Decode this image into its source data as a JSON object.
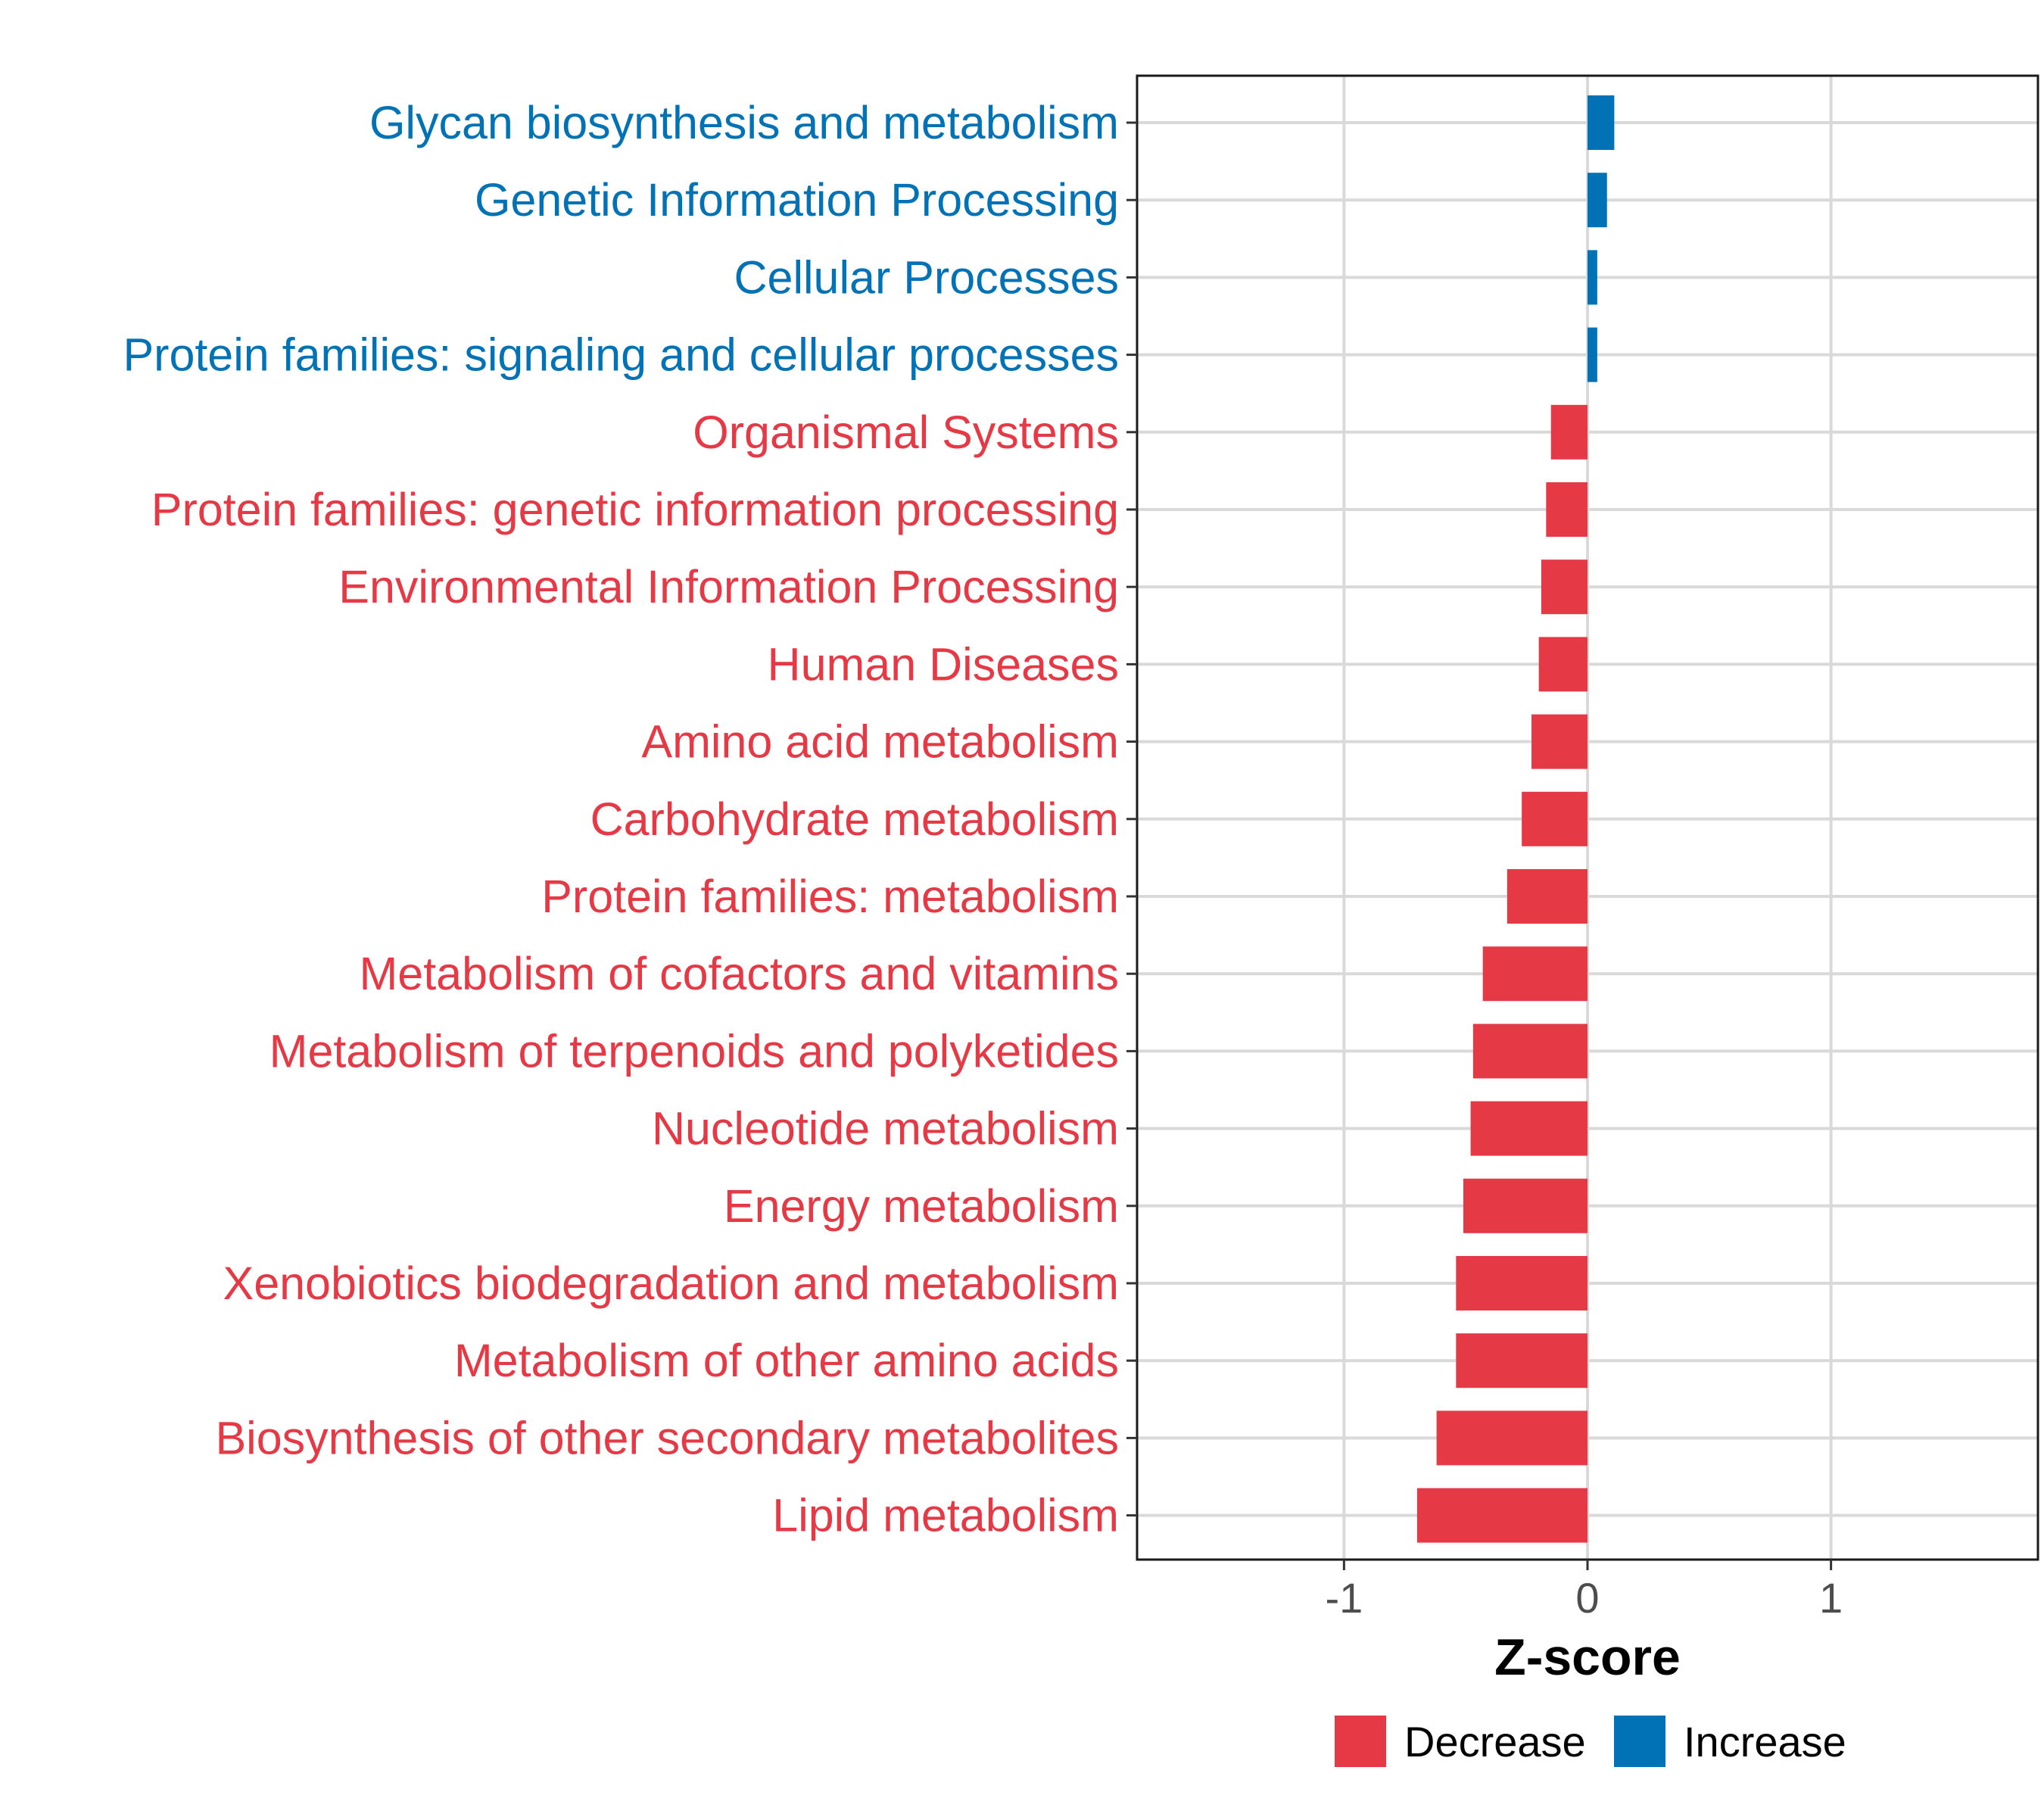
{
  "chart_data": {
    "type": "bar",
    "orientation": "horizontal",
    "xlabel": "Z-score",
    "ylabel": "",
    "xlim": [
      -1.85,
      1.85
    ],
    "xticks": [
      -1,
      0,
      1
    ],
    "grid": true,
    "legend_position": "bottom",
    "categories": [
      "Glycan biosynthesis and metabolism",
      "Genetic Information Processing",
      "Cellular Processes",
      "Protein families: signaling and cellular processes",
      "Organismal Systems",
      "Protein families: genetic information processing",
      "Environmental Information Processing",
      "Human Diseases",
      "Amino acid metabolism",
      "Carbohydrate metabolism",
      "Protein families: metabolism",
      "Metabolism of cofactors and vitamins",
      "Metabolism of terpenoids and polyketides",
      "Nucleotide metabolism",
      "Energy metabolism",
      "Xenobiotics biodegradation and metabolism",
      "Metabolism of other amino acids",
      "Biosynthesis of other secondary metabolites",
      "Lipid metabolism"
    ],
    "values": [
      0.11,
      0.08,
      0.04,
      0.04,
      -0.15,
      -0.17,
      -0.19,
      -0.2,
      -0.23,
      -0.27,
      -0.33,
      -0.43,
      -0.47,
      -0.48,
      -0.51,
      -0.54,
      -0.54,
      -0.62,
      -0.7
    ],
    "groups": [
      "Increase",
      "Increase",
      "Increase",
      "Increase",
      "Decrease",
      "Decrease",
      "Decrease",
      "Decrease",
      "Decrease",
      "Decrease",
      "Decrease",
      "Decrease",
      "Decrease",
      "Decrease",
      "Decrease",
      "Decrease",
      "Decrease",
      "Decrease",
      "Decrease"
    ],
    "legend": [
      {
        "name": "Decrease",
        "color": "#e63946"
      },
      {
        "name": "Increase",
        "color": "#0072b5"
      }
    ]
  }
}
